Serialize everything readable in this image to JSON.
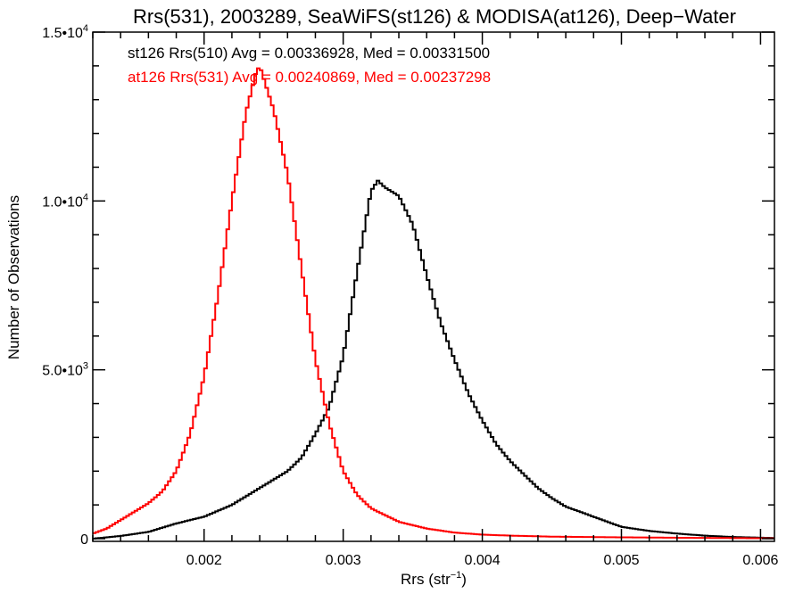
{
  "chart_data": {
    "type": "line",
    "title": "Rrs(531), 2003289, SeaWiFS(st126) & MODISA(at126), Deep−Water",
    "xlabel_main": "Rrs (str",
    "xlabel_sup": "−1",
    "xlabel_close": ")",
    "ylabel": "Number of Observations",
    "xlim": [
      0.0012,
      0.0061
    ],
    "ylim": [
      0,
      15000
    ],
    "x_ticks": [
      {
        "value": 0.002,
        "label": "0.002"
      },
      {
        "value": 0.003,
        "label": "0.003"
      },
      {
        "value": 0.004,
        "label": "0.004"
      },
      {
        "value": 0.005,
        "label": "0.005"
      },
      {
        "value": 0.006,
        "label": "0.006"
      }
    ],
    "y_ticks": [
      {
        "value": 0,
        "mant": "0",
        "exp": ""
      },
      {
        "value": 5000,
        "mant": "5.0•10",
        "exp": "3"
      },
      {
        "value": 10000,
        "mant": "1.0•10",
        "exp": "4"
      },
      {
        "value": 15000,
        "mant": "1.5•10",
        "exp": "4"
      }
    ],
    "legend": [
      {
        "text": "st126 Rrs(510) Avg = 0.00336928, Med = 0.00331500",
        "color": "#000000"
      },
      {
        "text": "at126 Rrs(531) Avg = 0.00240869, Med = 0.00237298",
        "color": "#ff0000"
      }
    ],
    "series": [
      {
        "color": "#000000",
        "style": "step",
        "points": [
          [
            0.0012,
            0
          ],
          [
            0.0014,
            80
          ],
          [
            0.0016,
            200
          ],
          [
            0.0018,
            450
          ],
          [
            0.002,
            650
          ],
          [
            0.0022,
            1000
          ],
          [
            0.0024,
            1500
          ],
          [
            0.0026,
            2000
          ],
          [
            0.0027,
            2400
          ],
          [
            0.0028,
            3100
          ],
          [
            0.0029,
            3900
          ],
          [
            0.003,
            5400
          ],
          [
            0.0031,
            7900
          ],
          [
            0.00315,
            9100
          ],
          [
            0.0032,
            10300
          ],
          [
            0.00325,
            10600
          ],
          [
            0.0033,
            10400
          ],
          [
            0.0034,
            10150
          ],
          [
            0.0035,
            9300
          ],
          [
            0.0036,
            7800
          ],
          [
            0.0037,
            6400
          ],
          [
            0.0038,
            5300
          ],
          [
            0.0039,
            4300
          ],
          [
            0.004,
            3500
          ],
          [
            0.0041,
            2800
          ],
          [
            0.0042,
            2300
          ],
          [
            0.0043,
            1900
          ],
          [
            0.0044,
            1500
          ],
          [
            0.0045,
            1200
          ],
          [
            0.0046,
            950
          ],
          [
            0.0048,
            650
          ],
          [
            0.005,
            350
          ],
          [
            0.0052,
            230
          ],
          [
            0.0054,
            150
          ],
          [
            0.0056,
            90
          ],
          [
            0.0058,
            50
          ],
          [
            0.006,
            30
          ],
          [
            0.0061,
            20
          ]
        ]
      },
      {
        "color": "#ff0000",
        "style": "step",
        "points": [
          [
            0.0012,
            150
          ],
          [
            0.0013,
            300
          ],
          [
            0.0014,
            550
          ],
          [
            0.0015,
            800
          ],
          [
            0.0016,
            1050
          ],
          [
            0.0017,
            1400
          ],
          [
            0.0018,
            2000
          ],
          [
            0.0019,
            3100
          ],
          [
            0.002,
            4800
          ],
          [
            0.0021,
            7200
          ],
          [
            0.0022,
            10000
          ],
          [
            0.0023,
            12600
          ],
          [
            0.0023725,
            13800
          ],
          [
            0.0024,
            14000
          ],
          [
            0.0025,
            12700
          ],
          [
            0.0026,
            10800
          ],
          [
            0.0027,
            8000
          ],
          [
            0.0028,
            5300
          ],
          [
            0.0029,
            3400
          ],
          [
            0.003,
            2000
          ],
          [
            0.0031,
            1300
          ],
          [
            0.0032,
            900
          ],
          [
            0.0034,
            500
          ],
          [
            0.0036,
            300
          ],
          [
            0.0038,
            180
          ],
          [
            0.004,
            120
          ],
          [
            0.0042,
            90
          ],
          [
            0.0045,
            60
          ],
          [
            0.005,
            40
          ],
          [
            0.0055,
            25
          ],
          [
            0.0061,
            10
          ]
        ]
      }
    ]
  }
}
